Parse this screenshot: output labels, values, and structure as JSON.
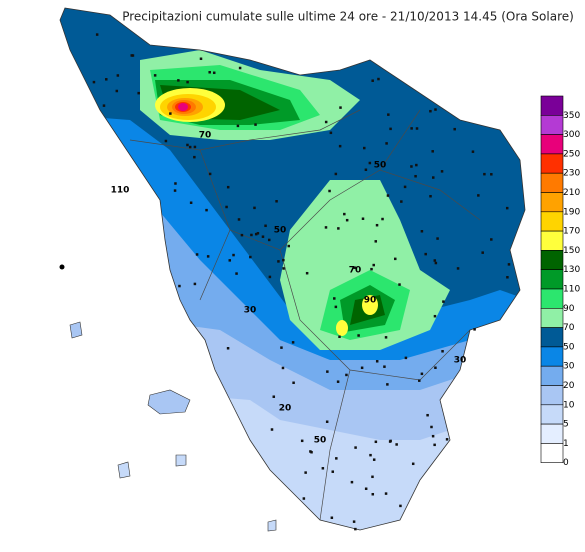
{
  "title": "Precipitazioni cumulate sulle ultime 24 ore - 21/10/2013 14.45 (Ora Solare)",
  "legend": [
    {
      "label": "350",
      "color": "#7a0098"
    },
    {
      "label": "300",
      "color": "#b43ad4"
    },
    {
      "label": "250",
      "color": "#e8007a"
    },
    {
      "label": "230",
      "color": "#ff3000"
    },
    {
      "label": "210",
      "color": "#ff7a00"
    },
    {
      "label": "190",
      "color": "#ffa200"
    },
    {
      "label": "170",
      "color": "#ffd400"
    },
    {
      "label": "150",
      "color": "#ffff3c"
    },
    {
      "label": "130",
      "color": "#006400"
    },
    {
      "label": "110",
      "color": "#009a28"
    },
    {
      "label": "90",
      "color": "#2ce66e"
    },
    {
      "label": "70",
      "color": "#90f0a6"
    },
    {
      "label": "50",
      "color": "#005a96"
    },
    {
      "label": "30",
      "color": "#0a86e6"
    },
    {
      "label": "20",
      "color": "#74acee"
    },
    {
      "label": "10",
      "color": "#a9c6f3"
    },
    {
      "label": "5",
      "color": "#c6daf9"
    },
    {
      "label": "1",
      "color": "#e4eeff"
    },
    {
      "label": "0",
      "color": "#ffffff"
    }
  ],
  "map": {
    "contour_labels": [
      "50",
      "70",
      "50",
      "110",
      "70",
      "30",
      "20",
      "50",
      "90",
      "30"
    ]
  }
}
